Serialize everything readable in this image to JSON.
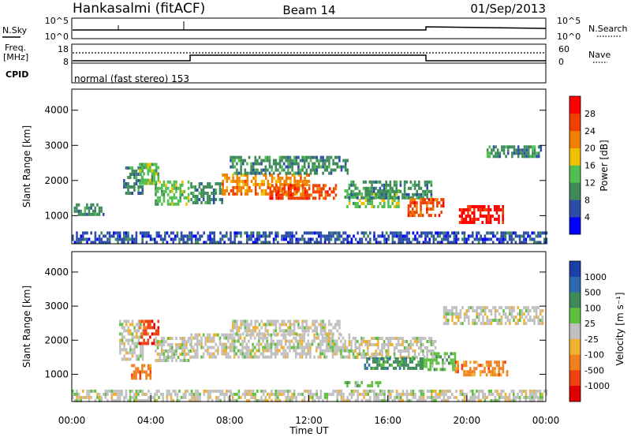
{
  "header": {
    "station": "Hankasalmi (fitACF)",
    "beam": "Beam 14",
    "date": "01/Sep/2013"
  },
  "status_panels": {
    "nsky_label": "N.Sky",
    "nsky_ticks": [
      "10^5",
      "10^0"
    ],
    "nsearch_label": "N.Search",
    "nsearch_ticks": [
      "10^5",
      "10^0"
    ],
    "freq_label_1": "Freq.",
    "freq_label_2": "[MHz]",
    "freq_ticks": [
      "18",
      "8"
    ],
    "nave_label": "Nave",
    "nave_ticks": [
      "60",
      "0"
    ],
    "cpid_label": "CPID",
    "cpid_text": "normal (fast stereo) 153"
  },
  "chart_data": [
    {
      "type": "heatmap",
      "name": "power",
      "ylabel": "Slant Range [km]",
      "y_ticks": [
        "1000",
        "2000",
        "3000",
        "4000"
      ],
      "y_range": [
        200,
        4600
      ],
      "x_range": [
        0,
        24
      ],
      "colorbar_label": "Power [dB]",
      "colorbar_ticks": [
        "4",
        "8",
        "12",
        "16",
        "20",
        "24",
        "28"
      ],
      "colorbar_colors": [
        "#0000ff",
        "#2c4ea8",
        "#3e8a5a",
        "#4fbf4f",
        "#f0c000",
        "#f08000",
        "#f04000",
        "#ff0000"
      ],
      "regions": [
        {
          "t0": 0.1,
          "t1": 1.6,
          "r0": 1000,
          "r1": 1350,
          "level": 2
        },
        {
          "t0": 2.6,
          "t1": 3.6,
          "r0": 1600,
          "r1": 2400,
          "level": 2
        },
        {
          "t0": 3.4,
          "t1": 4.4,
          "r0": 1900,
          "r1": 2500,
          "level": 3
        },
        {
          "t0": 4.2,
          "t1": 5.9,
          "r0": 1300,
          "r1": 2000,
          "level": 3
        },
        {
          "t0": 6.0,
          "t1": 7.6,
          "r0": 1350,
          "r1": 1950,
          "level": 2
        },
        {
          "t0": 7.6,
          "t1": 12.0,
          "r0": 1600,
          "r1": 2200,
          "level": 5
        },
        {
          "t0": 10.0,
          "t1": 13.4,
          "r0": 1500,
          "r1": 1900,
          "level": 6
        },
        {
          "t0": 8.0,
          "t1": 14.0,
          "r0": 2200,
          "r1": 2700,
          "level": 2
        },
        {
          "t0": 13.8,
          "t1": 16.6,
          "r0": 1300,
          "r1": 1750,
          "level": 3
        },
        {
          "t0": 14.0,
          "t1": 18.2,
          "r0": 1500,
          "r1": 2000,
          "level": 2
        },
        {
          "t0": 17.0,
          "t1": 18.8,
          "r0": 1000,
          "r1": 1500,
          "level": 6
        },
        {
          "t0": 19.6,
          "t1": 21.8,
          "r0": 850,
          "r1": 1300,
          "level": 7
        },
        {
          "t0": 21.0,
          "t1": 23.8,
          "r0": 2700,
          "r1": 3000,
          "level": 2
        },
        {
          "t0": 0.0,
          "t1": 24.0,
          "r0": 250,
          "r1": 550,
          "level": 1
        }
      ]
    },
    {
      "type": "heatmap",
      "name": "velocity",
      "ylabel": "Slant Range [km]",
      "y_ticks": [
        "1000",
        "2000",
        "3000",
        "4000"
      ],
      "y_range": [
        200,
        4600
      ],
      "x_range": [
        0,
        24
      ],
      "x_ticks": [
        "00:00",
        "04:00",
        "08:00",
        "12:00",
        "16:00",
        "20:00",
        "00:00"
      ],
      "xlabel": "Time UT",
      "colorbar_label": "Velocity [m s⁻¹]",
      "colorbar_ticks": [
        "1000",
        "500",
        "100",
        "25",
        "-25",
        "-100",
        "-500",
        "-1000"
      ],
      "colorbar_colors": [
        "#1a3fa8",
        "#2c6ab0",
        "#3e8a5a",
        "#5fc040",
        "#c0c0c0",
        "#f0b030",
        "#f08020",
        "#f04010",
        "#e00000"
      ],
      "regions": [
        {
          "t0": 2.4,
          "t1": 3.6,
          "r0": 1400,
          "r1": 2600,
          "level": 4
        },
        {
          "t0": 3.4,
          "t1": 4.4,
          "r0": 1950,
          "r1": 2600,
          "level": 7
        },
        {
          "t0": 3.0,
          "t1": 4.0,
          "r0": 900,
          "r1": 1300,
          "level": 6
        },
        {
          "t0": 4.2,
          "t1": 6.0,
          "r0": 1400,
          "r1": 2100,
          "level": 4
        },
        {
          "t0": 6.0,
          "t1": 14.0,
          "r0": 1500,
          "r1": 2200,
          "level": 4
        },
        {
          "t0": 8.0,
          "t1": 13.6,
          "r0": 2200,
          "r1": 2600,
          "level": 4
        },
        {
          "t0": 14.0,
          "t1": 18.4,
          "r0": 1500,
          "r1": 2100,
          "level": 4
        },
        {
          "t0": 14.8,
          "t1": 17.8,
          "r0": 1150,
          "r1": 1500,
          "level": 2
        },
        {
          "t0": 17.8,
          "t1": 19.4,
          "r0": 1100,
          "r1": 1650,
          "level": 3
        },
        {
          "t0": 19.4,
          "t1": 22.0,
          "r0": 950,
          "r1": 1400,
          "level": 6
        },
        {
          "t0": 18.8,
          "t1": 23.8,
          "r0": 2500,
          "r1": 3000,
          "level": 4
        },
        {
          "t0": 13.8,
          "t1": 15.6,
          "r0": 650,
          "r1": 800,
          "level": 3
        },
        {
          "t0": 0.0,
          "t1": 24.0,
          "r0": 250,
          "r1": 550,
          "level": 4
        }
      ]
    }
  ]
}
